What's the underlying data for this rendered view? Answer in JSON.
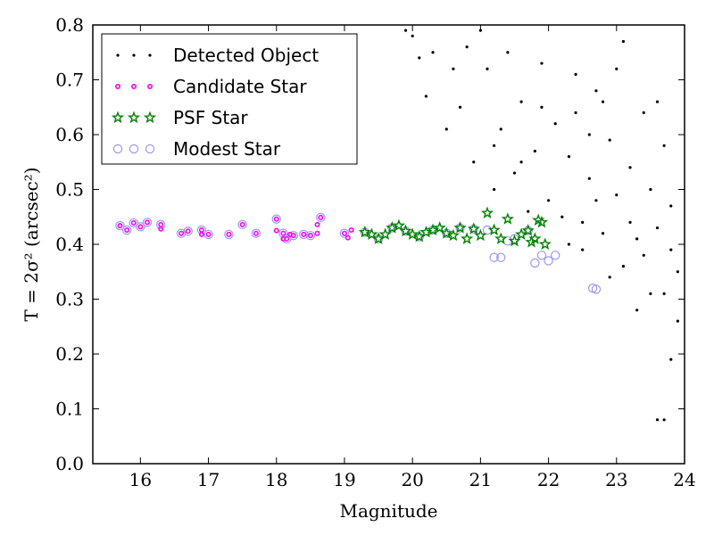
{
  "chart_data": {
    "type": "scatter",
    "xlabel": "Magnitude",
    "ylabel": "T = 2σ² (arcsec²)",
    "xlim": [
      15.3,
      24
    ],
    "ylim": [
      0.0,
      0.8
    ],
    "x_ticks": [
      16,
      17,
      18,
      19,
      20,
      21,
      22,
      23,
      24
    ],
    "y_ticks": [
      0.0,
      0.1,
      0.2,
      0.3,
      0.4,
      0.5,
      0.6,
      0.7,
      0.8
    ],
    "x_tick_labels": [
      "16",
      "17",
      "18",
      "19",
      "20",
      "21",
      "22",
      "23",
      "24"
    ],
    "y_tick_labels": [
      "0.0",
      "0.1",
      "0.2",
      "0.3",
      "0.4",
      "0.5",
      "0.6",
      "0.7",
      "0.8"
    ],
    "grid": false,
    "legend_position": "top-left",
    "series": [
      {
        "name": "Detected Object",
        "marker": "dot",
        "color": "#000000",
        "points": [
          [
            19.9,
            0.79
          ],
          [
            20.0,
            0.78
          ],
          [
            20.2,
            0.67
          ],
          [
            20.5,
            0.61
          ],
          [
            20.7,
            0.65
          ],
          [
            20.8,
            0.76
          ],
          [
            21.0,
            0.79
          ],
          [
            21.1,
            0.72
          ],
          [
            21.2,
            0.58
          ],
          [
            21.3,
            0.61
          ],
          [
            21.4,
            0.75
          ],
          [
            21.5,
            0.53
          ],
          [
            21.6,
            0.66
          ],
          [
            21.7,
            0.46
          ],
          [
            21.8,
            0.57
          ],
          [
            21.9,
            0.73
          ],
          [
            22.0,
            0.48
          ],
          [
            22.1,
            0.62
          ],
          [
            22.2,
            0.45
          ],
          [
            22.3,
            0.56
          ],
          [
            22.4,
            0.71
          ],
          [
            22.5,
            0.44
          ],
          [
            22.6,
            0.52
          ],
          [
            22.7,
            0.68
          ],
          [
            22.8,
            0.42
          ],
          [
            22.9,
            0.59
          ],
          [
            23.0,
            0.49
          ],
          [
            23.1,
            0.77
          ],
          [
            23.2,
            0.54
          ],
          [
            23.3,
            0.41
          ],
          [
            23.4,
            0.64
          ],
          [
            23.5,
            0.5
          ],
          [
            23.6,
            0.43
          ],
          [
            23.7,
            0.58
          ],
          [
            23.8,
            0.47
          ],
          [
            23.9,
            0.35
          ],
          [
            22.5,
            0.39
          ],
          [
            22.9,
            0.34
          ],
          [
            23.3,
            0.28
          ],
          [
            23.7,
            0.31
          ],
          [
            23.9,
            0.26
          ],
          [
            23.8,
            0.19
          ],
          [
            23.6,
            0.08
          ],
          [
            23.7,
            0.08
          ],
          [
            22.3,
            0.4
          ],
          [
            22.6,
            0.6
          ],
          [
            22.8,
            0.66
          ],
          [
            23.0,
            0.72
          ],
          [
            23.2,
            0.44
          ],
          [
            23.4,
            0.38
          ],
          [
            23.6,
            0.66
          ],
          [
            23.8,
            0.39
          ],
          [
            23.5,
            0.31
          ],
          [
            23.1,
            0.36
          ],
          [
            22.7,
            0.48
          ],
          [
            22.4,
            0.64
          ],
          [
            21.9,
            0.65
          ],
          [
            21.6,
            0.55
          ],
          [
            21.2,
            0.5
          ],
          [
            20.9,
            0.55
          ],
          [
            20.6,
            0.72
          ],
          [
            20.3,
            0.75
          ],
          [
            15.5,
            0.72
          ],
          [
            20.1,
            0.74
          ]
        ]
      },
      {
        "name": "Candidate Star",
        "marker": "circle-small",
        "color": "#ff00ff",
        "points": [
          [
            15.7,
            0.434
          ],
          [
            15.8,
            0.426
          ],
          [
            15.9,
            0.439
          ],
          [
            16.0,
            0.432
          ],
          [
            16.1,
            0.44
          ],
          [
            16.3,
            0.436
          ],
          [
            16.3,
            0.428
          ],
          [
            16.6,
            0.42
          ],
          [
            16.7,
            0.424
          ],
          [
            16.9,
            0.426
          ],
          [
            16.9,
            0.418
          ],
          [
            17.0,
            0.418
          ],
          [
            17.3,
            0.418
          ],
          [
            17.5,
            0.436
          ],
          [
            17.7,
            0.42
          ],
          [
            18.0,
            0.446
          ],
          [
            18.0,
            0.425
          ],
          [
            18.1,
            0.42
          ],
          [
            18.1,
            0.41
          ],
          [
            18.15,
            0.41
          ],
          [
            18.2,
            0.418
          ],
          [
            18.25,
            0.416
          ],
          [
            18.4,
            0.418
          ],
          [
            18.5,
            0.416
          ],
          [
            18.6,
            0.42
          ],
          [
            18.65,
            0.449
          ],
          [
            18.6,
            0.436
          ],
          [
            19.0,
            0.42
          ],
          [
            19.05,
            0.412
          ],
          [
            19.1,
            0.426
          ]
        ]
      },
      {
        "name": "PSF Star",
        "marker": "star",
        "color": "#008000",
        "points": [
          [
            19.3,
            0.422
          ],
          [
            19.4,
            0.418
          ],
          [
            19.5,
            0.41
          ],
          [
            19.6,
            0.418
          ],
          [
            19.7,
            0.43
          ],
          [
            19.8,
            0.434
          ],
          [
            19.9,
            0.424
          ],
          [
            20.0,
            0.418
          ],
          [
            20.1,
            0.414
          ],
          [
            20.2,
            0.422
          ],
          [
            20.3,
            0.426
          ],
          [
            20.4,
            0.43
          ],
          [
            20.5,
            0.42
          ],
          [
            20.6,
            0.416
          ],
          [
            20.7,
            0.43
          ],
          [
            20.8,
            0.41
          ],
          [
            20.9,
            0.428
          ],
          [
            21.0,
            0.416
          ],
          [
            21.1,
            0.457
          ],
          [
            21.2,
            0.426
          ],
          [
            21.3,
            0.41
          ],
          [
            21.4,
            0.446
          ],
          [
            21.5,
            0.406
          ],
          [
            21.6,
            0.418
          ],
          [
            21.7,
            0.425
          ],
          [
            21.75,
            0.404
          ],
          [
            21.8,
            0.41
          ],
          [
            21.85,
            0.444
          ],
          [
            21.9,
            0.44
          ],
          [
            21.95,
            0.4
          ]
        ]
      },
      {
        "name": "Modest Star",
        "marker": "circle-open",
        "color": "#9999ee",
        "points": [
          [
            15.7,
            0.434
          ],
          [
            15.8,
            0.426
          ],
          [
            15.9,
            0.439
          ],
          [
            16.0,
            0.432
          ],
          [
            16.1,
            0.44
          ],
          [
            16.3,
            0.436
          ],
          [
            16.6,
            0.42
          ],
          [
            16.7,
            0.424
          ],
          [
            16.9,
            0.426
          ],
          [
            17.0,
            0.418
          ],
          [
            17.3,
            0.418
          ],
          [
            17.5,
            0.436
          ],
          [
            17.7,
            0.42
          ],
          [
            18.0,
            0.446
          ],
          [
            18.1,
            0.42
          ],
          [
            18.15,
            0.41
          ],
          [
            18.25,
            0.416
          ],
          [
            18.4,
            0.418
          ],
          [
            18.5,
            0.416
          ],
          [
            18.65,
            0.449
          ],
          [
            19.0,
            0.42
          ],
          [
            19.3,
            0.422
          ],
          [
            19.5,
            0.41
          ],
          [
            19.7,
            0.43
          ],
          [
            19.9,
            0.424
          ],
          [
            20.1,
            0.414
          ],
          [
            20.3,
            0.426
          ],
          [
            20.5,
            0.42
          ],
          [
            20.7,
            0.43
          ],
          [
            20.9,
            0.428
          ],
          [
            21.1,
            0.426
          ],
          [
            21.2,
            0.376
          ],
          [
            21.3,
            0.376
          ],
          [
            21.4,
            0.406
          ],
          [
            21.5,
            0.41
          ],
          [
            21.7,
            0.425
          ],
          [
            21.8,
            0.366
          ],
          [
            21.9,
            0.38
          ],
          [
            22.0,
            0.37
          ],
          [
            22.1,
            0.38
          ],
          [
            22.65,
            0.32
          ],
          [
            22.7,
            0.318
          ]
        ]
      }
    ]
  }
}
